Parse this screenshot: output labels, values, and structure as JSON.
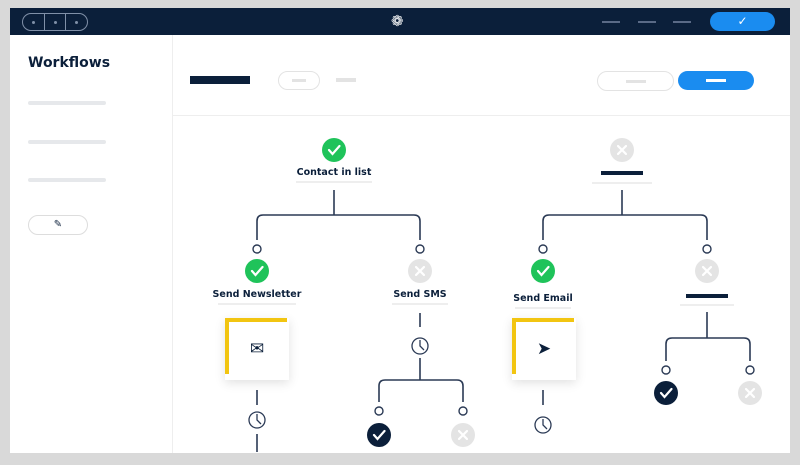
{
  "topbar": {
    "logo_icon": "spiral-logo-icon",
    "confirm_icon": "check-icon",
    "confirm_glyph": "✓"
  },
  "sidebar": {
    "title": "Workflows",
    "edit_icon": "pencil-icon",
    "edit_glyph": "✎"
  },
  "flow": {
    "nodes": [
      {
        "label": "Contact in list",
        "status": "success"
      },
      {
        "label": "Send Newsletter",
        "status": "success",
        "action_icon": "envelope-icon"
      },
      {
        "label": "Send SMS",
        "status": "inactive"
      },
      {
        "label": "Send Email",
        "status": "success",
        "action_icon": "paper-plane-icon"
      }
    ],
    "glyphs": {
      "envelope": "✉",
      "plane": "➤"
    }
  },
  "colors": {
    "navy": "#0b1f3a",
    "accent": "#1a8cf0",
    "success": "#1fc35a",
    "inactive": "#e4e4e4",
    "highlight": "#f2c511"
  }
}
